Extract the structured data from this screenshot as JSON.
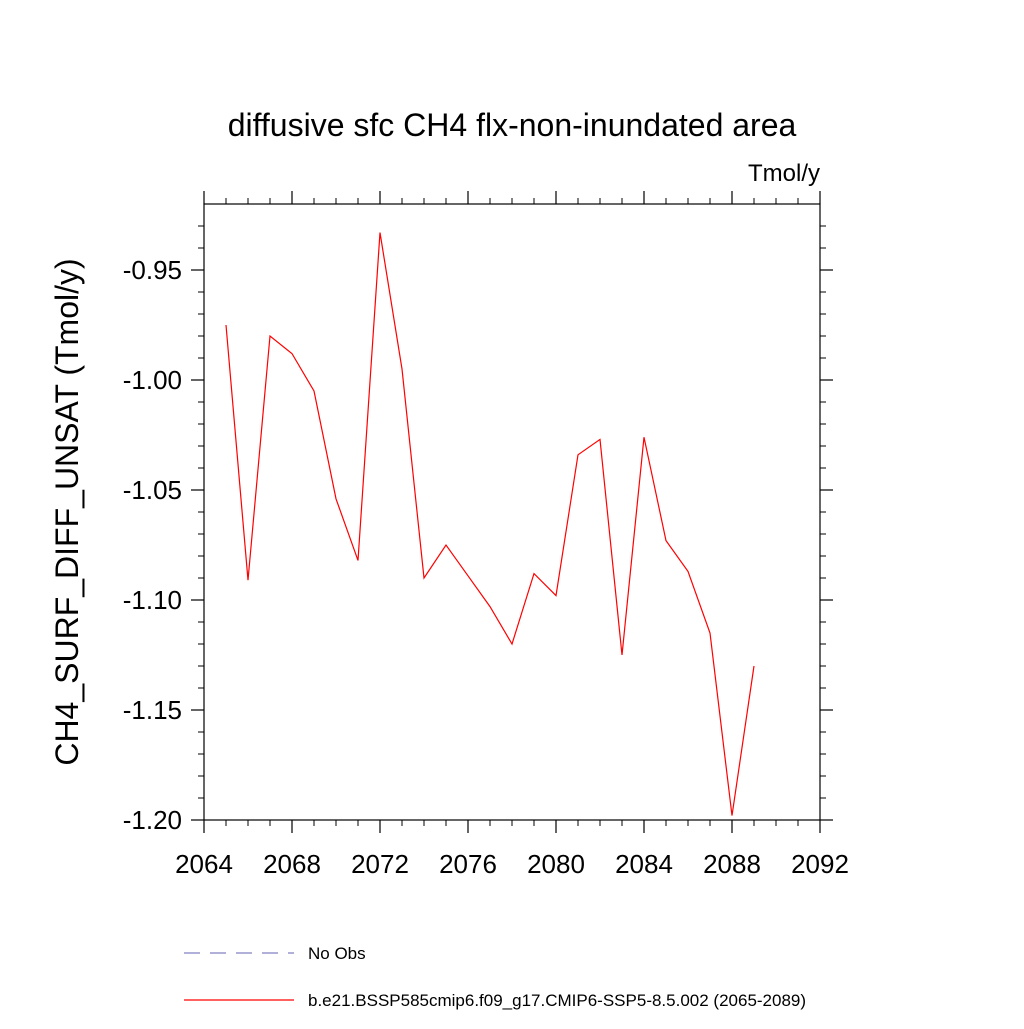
{
  "chart_data": {
    "type": "line",
    "title": "diffusive sfc CH4 flx-non-inundated area",
    "units_label": "Tmol/y",
    "ylabel": "CH4_SURF_DIFF_UNSAT  (Tmol/y)",
    "xlabel": "",
    "xlim": [
      2064,
      2092
    ],
    "ylim": [
      -1.2,
      -0.92
    ],
    "x_ticks": [
      2064,
      2068,
      2072,
      2076,
      2080,
      2084,
      2088,
      2092
    ],
    "y_ticks": [
      -1.2,
      -1.15,
      -1.1,
      -1.05,
      -1.0,
      -0.95
    ],
    "y_tick_labels": [
      "-1.20",
      "-1.15",
      "-1.10",
      "-1.05",
      "-1.00",
      "-0.95"
    ],
    "grid": false,
    "legend_position": "bottom",
    "series": [
      {
        "name": "b.e21.BSSP585cmip6.f09_g17.CMIP6-SSP5-8.5.002 (2065-2089)",
        "color": "#ff0000",
        "style": "solid",
        "x": [
          2065,
          2066,
          2067,
          2068,
          2069,
          2070,
          2071,
          2072,
          2073,
          2074,
          2075,
          2076,
          2077,
          2078,
          2079,
          2080,
          2081,
          2082,
          2083,
          2084,
          2085,
          2086,
          2087,
          2088,
          2089
        ],
        "y": [
          -0.975,
          -1.091,
          -0.98,
          -0.988,
          -1.005,
          -1.054,
          -1.082,
          -0.933,
          -0.995,
          -1.09,
          -1.075,
          -1.089,
          -1.103,
          -1.12,
          -1.088,
          -1.098,
          -1.034,
          -1.027,
          -1.125,
          -1.026,
          -1.073,
          -1.087,
          -1.115,
          -1.198,
          -1.13
        ]
      }
    ],
    "legend": [
      {
        "label": "No Obs",
        "color": "#8080c0",
        "style": "dashed"
      },
      {
        "label": "b.e21.BSSP585cmip6.f09_g17.CMIP6-SSP5-8.5.002 (2065-2089)",
        "color": "#ff0000",
        "style": "solid"
      }
    ]
  }
}
